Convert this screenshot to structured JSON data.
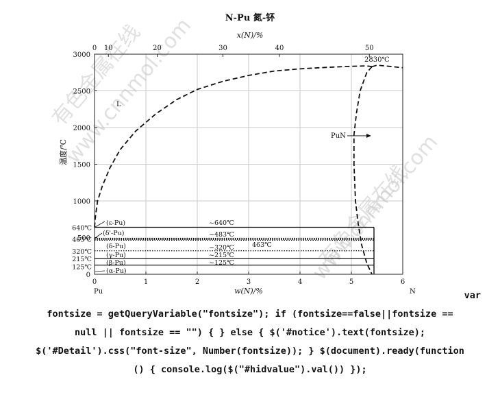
{
  "chart_data": {
    "type": "line",
    "title": "N-Pu  氮-钚",
    "top_axis": {
      "label": "x(N)/%",
      "ticks": [
        "0",
        "10",
        "20",
        "30",
        "40",
        "50"
      ]
    },
    "xlabel": "w(N)/%",
    "ylabel": "温度/℃",
    "xlim": [
      0,
      6
    ],
    "ylim": [
      0,
      3000
    ],
    "x_ticks": [
      "0",
      "1",
      "2",
      "3",
      "4",
      "5",
      "6"
    ],
    "y_ticks": [
      "0",
      "500",
      "1000",
      "1500",
      "2000",
      "2500",
      "3000"
    ],
    "x_end_labels": {
      "left": "Pu",
      "right": "N"
    },
    "special_y_labels": [
      {
        "value": 640,
        "text": "640℃"
      },
      {
        "value": 463,
        "text": "463℃"
      },
      {
        "value": 320,
        "text": "320℃"
      },
      {
        "value": 215,
        "text": "215℃"
      },
      {
        "value": 125,
        "text": "125℃"
      }
    ],
    "series": [
      {
        "style": "dashed",
        "x": [
          0.0,
          0.02,
          0.06,
          0.15,
          0.3,
          0.5,
          0.8,
          1.2,
          1.6,
          2.0,
          2.5,
          3.0,
          3.5,
          4.0,
          4.5,
          5.0,
          5.3,
          5.4
        ],
        "y": [
          640,
          800,
          1000,
          1200,
          1450,
          1700,
          1950,
          2190,
          2380,
          2520,
          2630,
          2710,
          2770,
          2800,
          2820,
          2835,
          2840,
          2830
        ]
      },
      {
        "style": "dashed",
        "x": [
          5.4,
          5.3,
          5.17,
          5.1,
          5.05,
          5.05,
          5.08,
          5.13,
          5.2,
          5.3,
          5.4
        ],
        "y": [
          2830,
          2750,
          2500,
          2200,
          1900,
          1500,
          1000,
          700,
          400,
          150,
          0
        ]
      },
      {
        "style": "dashed",
        "x": [
          5.4,
          5.5,
          5.65,
          5.8,
          6.0
        ],
        "y": [
          2830,
          2850,
          2840,
          2830,
          2815
        ]
      }
    ],
    "horizontal_lines": [
      {
        "y": 640,
        "style": "solid"
      },
      {
        "y": 483,
        "style": "thick-dotted"
      },
      {
        "y": 463,
        "style": "dotted"
      },
      {
        "y": 320,
        "style": "dotted"
      },
      {
        "y": 215,
        "style": "solid"
      },
      {
        "y": 125,
        "style": "solid"
      }
    ],
    "annotations": {
      "max_temp": "2830℃",
      "liquid": "L",
      "compound": "PuN",
      "phases": [
        "(ε-Pu)",
        "(δ'-Pu)",
        "(δ-Pu)",
        "(γ-Pu)",
        "(β-Pu)",
        "(α-Pu)"
      ],
      "temps": [
        "~640℃",
        "~483℃",
        "~320℃",
        "463℃",
        "~215℃",
        "~125℃"
      ]
    },
    "grid": true
  },
  "watermarks": [
    "有色金属在线",
    "www.cnnmol.com",
    "有色金属在线",
    "www.cnnmol.com"
  ],
  "code_lines": [
    "var",
    "fontsize = getQueryVariable(\"fontsize\"); if (fontsize==false||fontsize ==",
    "null || fontsize == \"\") { } else { $('#notice').text(fontsize);",
    "$('#Detail').css(\"font-size\", Number(fontsize)); } $(document).ready(function",
    "() { console.log($(\"#hidvalue\").val()) });"
  ]
}
